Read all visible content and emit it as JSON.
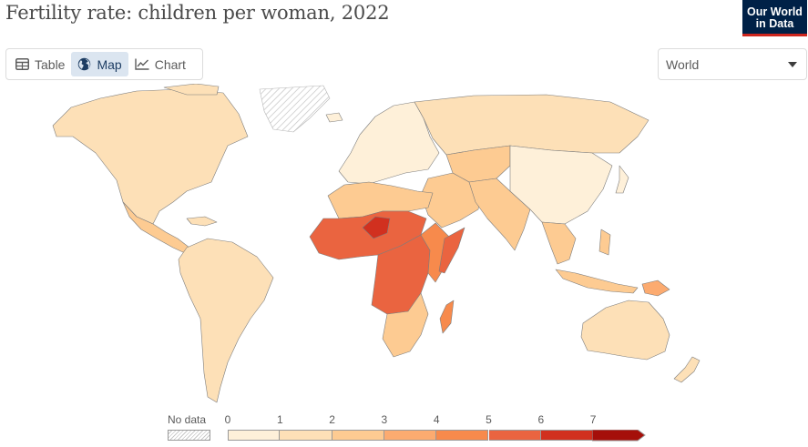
{
  "title": "Fertility rate: children per woman, 2022",
  "logo": {
    "line1": "Our World",
    "line2": "in Data",
    "background": "#002147",
    "accent": "#ce261e"
  },
  "tabs": [
    {
      "label": "Table",
      "icon": "table-icon",
      "active": false
    },
    {
      "label": "Map",
      "icon": "globe-icon",
      "active": true
    },
    {
      "label": "Chart",
      "icon": "line-chart-icon",
      "active": false
    }
  ],
  "region_select": {
    "value": "World",
    "icon": "caret-down-icon"
  },
  "legend": {
    "no_data_label": "No data",
    "ticks": [
      "0",
      "1",
      "2",
      "3",
      "4",
      "5",
      "6",
      "7"
    ],
    "bins": [
      {
        "from": 0,
        "to": 1,
        "color": "#fef0d9"
      },
      {
        "from": 1,
        "to": 2,
        "color": "#fde0b7"
      },
      {
        "from": 2,
        "to": 3,
        "color": "#fdcb92"
      },
      {
        "from": 3,
        "to": 4,
        "color": "#fcab70"
      },
      {
        "from": 4,
        "to": 5,
        "color": "#f78a4c"
      },
      {
        "from": 5,
        "to": 6,
        "color": "#ea6440"
      },
      {
        "from": 6,
        "to": 7,
        "color": "#d1301f"
      },
      {
        "from": 7,
        "to": null,
        "color": "#a50f0a"
      }
    ]
  },
  "map_regions": [
    {
      "name": "North America",
      "color": "#fde0b7"
    },
    {
      "name": "Greenland",
      "color": "no-data"
    },
    {
      "name": "Central America",
      "color": "#fdcb92"
    },
    {
      "name": "South America",
      "color": "#fde0b7"
    },
    {
      "name": "Europe",
      "color": "#fef0d9"
    },
    {
      "name": "Russia",
      "color": "#fde0b7"
    },
    {
      "name": "Central Asia",
      "color": "#fdcb92"
    },
    {
      "name": "Middle East",
      "color": "#fdcb92"
    },
    {
      "name": "South Asia",
      "color": "#fdcb92"
    },
    {
      "name": "East Asia",
      "color": "#fef0d9"
    },
    {
      "name": "Southeast Asia",
      "color": "#fdcb92"
    },
    {
      "name": "North Africa",
      "color": "#fdcb92"
    },
    {
      "name": "Sahel",
      "color": "#ea6440"
    },
    {
      "name": "Niger",
      "color": "#d1301f"
    },
    {
      "name": "Central Africa",
      "color": "#ea6440"
    },
    {
      "name": "East Africa",
      "color": "#f78a4c"
    },
    {
      "name": "Somalia",
      "color": "#ea6440"
    },
    {
      "name": "Southern Africa",
      "color": "#fdcb92"
    },
    {
      "name": "Madagascar",
      "color": "#f78a4c"
    },
    {
      "name": "Australia",
      "color": "#fde0b7"
    },
    {
      "name": "Papua New Guinea",
      "color": "#fcab70"
    },
    {
      "name": "New Zealand",
      "color": "#fde0b7"
    }
  ]
}
